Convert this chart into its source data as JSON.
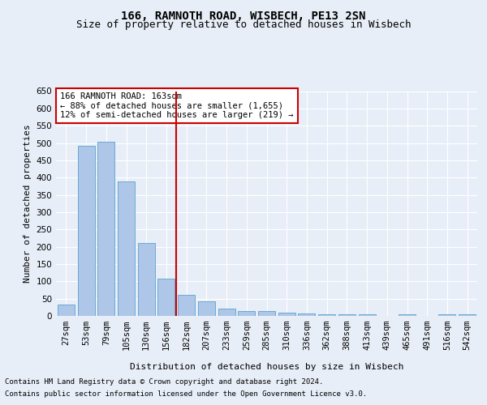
{
  "title": "166, RAMNOTH ROAD, WISBECH, PE13 2SN",
  "subtitle": "Size of property relative to detached houses in Wisbech",
  "xlabel": "Distribution of detached houses by size in Wisbech",
  "ylabel": "Number of detached properties",
  "footer_line1": "Contains HM Land Registry data © Crown copyright and database right 2024.",
  "footer_line2": "Contains public sector information licensed under the Open Government Licence v3.0.",
  "categories": [
    "27sqm",
    "53sqm",
    "79sqm",
    "105sqm",
    "130sqm",
    "156sqm",
    "182sqm",
    "207sqm",
    "233sqm",
    "259sqm",
    "285sqm",
    "310sqm",
    "336sqm",
    "362sqm",
    "388sqm",
    "413sqm",
    "439sqm",
    "465sqm",
    "491sqm",
    "516sqm",
    "542sqm"
  ],
  "values": [
    32,
    492,
    503,
    390,
    210,
    107,
    60,
    42,
    22,
    15,
    13,
    10,
    8,
    5,
    5,
    4,
    0,
    5,
    0,
    5,
    5
  ],
  "bar_color": "#aec6e8",
  "bar_edge_color": "#6aaad4",
  "vline_x": 5.5,
  "vline_color": "#cc0000",
  "annotation_text": "166 RAMNOTH ROAD: 163sqm\n← 88% of detached houses are smaller (1,655)\n12% of semi-detached houses are larger (219) →",
  "annotation_box_color": "#cc0000",
  "ylim": [
    0,
    650
  ],
  "yticks": [
    0,
    50,
    100,
    150,
    200,
    250,
    300,
    350,
    400,
    450,
    500,
    550,
    600,
    650
  ],
  "background_color": "#e8eef7",
  "plot_bg_color": "#e8eef7",
  "grid_color": "#ffffff",
  "title_fontsize": 10,
  "subtitle_fontsize": 9,
  "axis_label_fontsize": 8,
  "tick_fontsize": 7.5,
  "footer_fontsize": 6.5
}
